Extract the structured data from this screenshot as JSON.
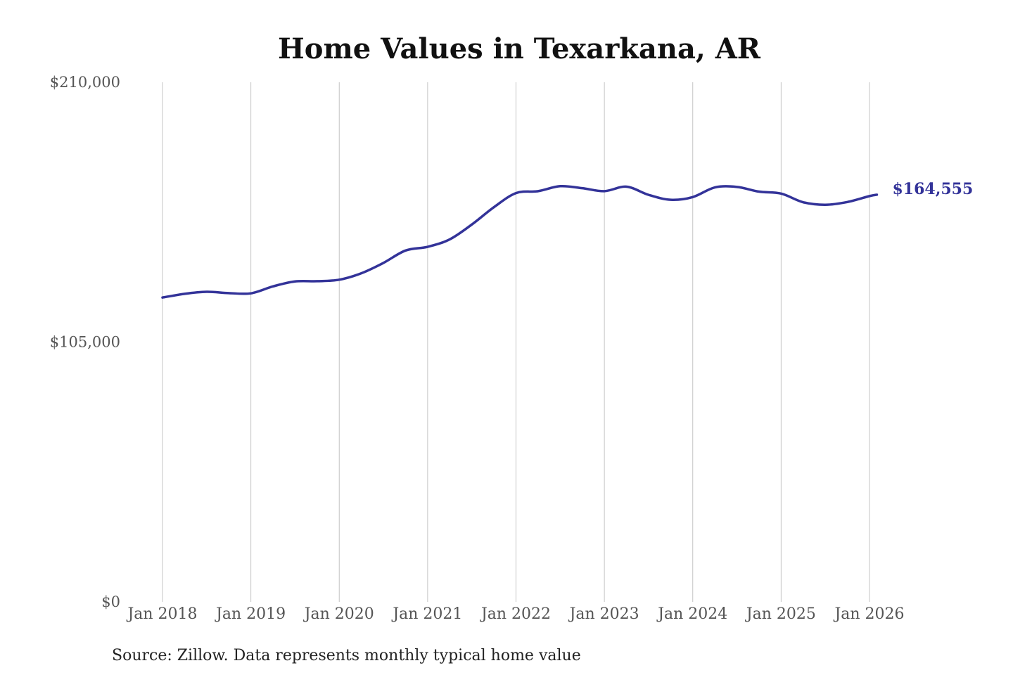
{
  "chart_data": {
    "type": "line",
    "title": "Home Values in Texarkana, AR",
    "xlabel": "",
    "ylabel": "",
    "ylim": [
      0,
      210000
    ],
    "y_ticks": [
      {
        "value": 0,
        "label": "$0"
      },
      {
        "value": 105000,
        "label": "$105,000"
      },
      {
        "value": 210000,
        "label": "$210,000"
      }
    ],
    "x_ticks": [
      {
        "value": "2018-01",
        "label": "Jan 2018"
      },
      {
        "value": "2019-01",
        "label": "Jan 2019"
      },
      {
        "value": "2020-01",
        "label": "Jan 2020"
      },
      {
        "value": "2021-01",
        "label": "Jan 2021"
      },
      {
        "value": "2022-01",
        "label": "Jan 2022"
      },
      {
        "value": "2023-01",
        "label": "Jan 2023"
      },
      {
        "value": "2024-01",
        "label": "Jan 2024"
      },
      {
        "value": "2025-01",
        "label": "Jan 2025"
      },
      {
        "value": "2026-01",
        "label": "Jan 2026"
      }
    ],
    "grid": "vertical",
    "legend": "none",
    "series": [
      {
        "color": "#333399",
        "end_label": "$164,555",
        "points": [
          {
            "x": "2018-01",
            "y": 123000
          },
          {
            "x": "2018-04",
            "y": 124500
          },
          {
            "x": "2018-07",
            "y": 125300
          },
          {
            "x": "2018-10",
            "y": 124800
          },
          {
            "x": "2019-01",
            "y": 124700
          },
          {
            "x": "2019-04",
            "y": 127500
          },
          {
            "x": "2019-07",
            "y": 129500
          },
          {
            "x": "2019-10",
            "y": 129600
          },
          {
            "x": "2020-01",
            "y": 130200
          },
          {
            "x": "2020-04",
            "y": 132800
          },
          {
            "x": "2020-07",
            "y": 137000
          },
          {
            "x": "2020-10",
            "y": 142000
          },
          {
            "x": "2021-01",
            "y": 143500
          },
          {
            "x": "2021-04",
            "y": 146500
          },
          {
            "x": "2021-07",
            "y": 152500
          },
          {
            "x": "2021-10",
            "y": 159500
          },
          {
            "x": "2022-01",
            "y": 165200
          },
          {
            "x": "2022-04",
            "y": 166000
          },
          {
            "x": "2022-07",
            "y": 168000
          },
          {
            "x": "2022-10",
            "y": 167200
          },
          {
            "x": "2023-01",
            "y": 166000
          },
          {
            "x": "2023-04",
            "y": 167800
          },
          {
            "x": "2023-07",
            "y": 164500
          },
          {
            "x": "2023-10",
            "y": 162500
          },
          {
            "x": "2024-01",
            "y": 163600
          },
          {
            "x": "2024-04",
            "y": 167500
          },
          {
            "x": "2024-07",
            "y": 167700
          },
          {
            "x": "2024-10",
            "y": 165800
          },
          {
            "x": "2025-01",
            "y": 165000
          },
          {
            "x": "2025-04",
            "y": 161500
          },
          {
            "x": "2025-07",
            "y": 160500
          },
          {
            "x": "2025-10",
            "y": 161600
          },
          {
            "x": "2026-01",
            "y": 164000
          },
          {
            "x": "2026-02",
            "y": 164555
          }
        ]
      }
    ],
    "source_note": "Source: Zillow. Data represents monthly typical home value"
  }
}
